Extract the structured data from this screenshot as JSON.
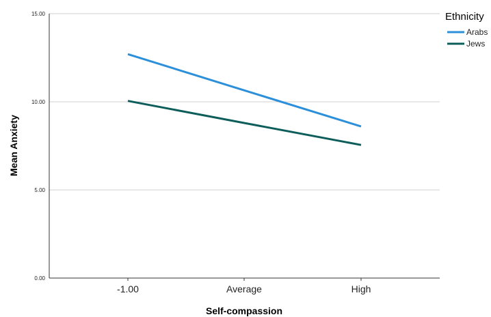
{
  "chart_data": {
    "type": "line",
    "title": "",
    "xlabel": "Self-compassion",
    "ylabel": "Mean Anxiety",
    "categories": [
      "-1.00",
      "Average",
      "High"
    ],
    "ylim": [
      0,
      15
    ],
    "yticks": [
      "0.00",
      "5.00",
      "10.00",
      "15.00"
    ],
    "ytick_values": [
      0,
      5,
      10,
      15
    ],
    "grid": "horizontal",
    "legend": {
      "title": "Ethnicity",
      "placement": "top-right"
    },
    "series": [
      {
        "name": "Arabs",
        "color": "#2b8fd9",
        "values": [
          12.7,
          10.65,
          8.6
        ]
      },
      {
        "name": "Jews",
        "color": "#0d5e5a",
        "values": [
          10.05,
          8.8,
          7.55
        ]
      }
    ]
  }
}
